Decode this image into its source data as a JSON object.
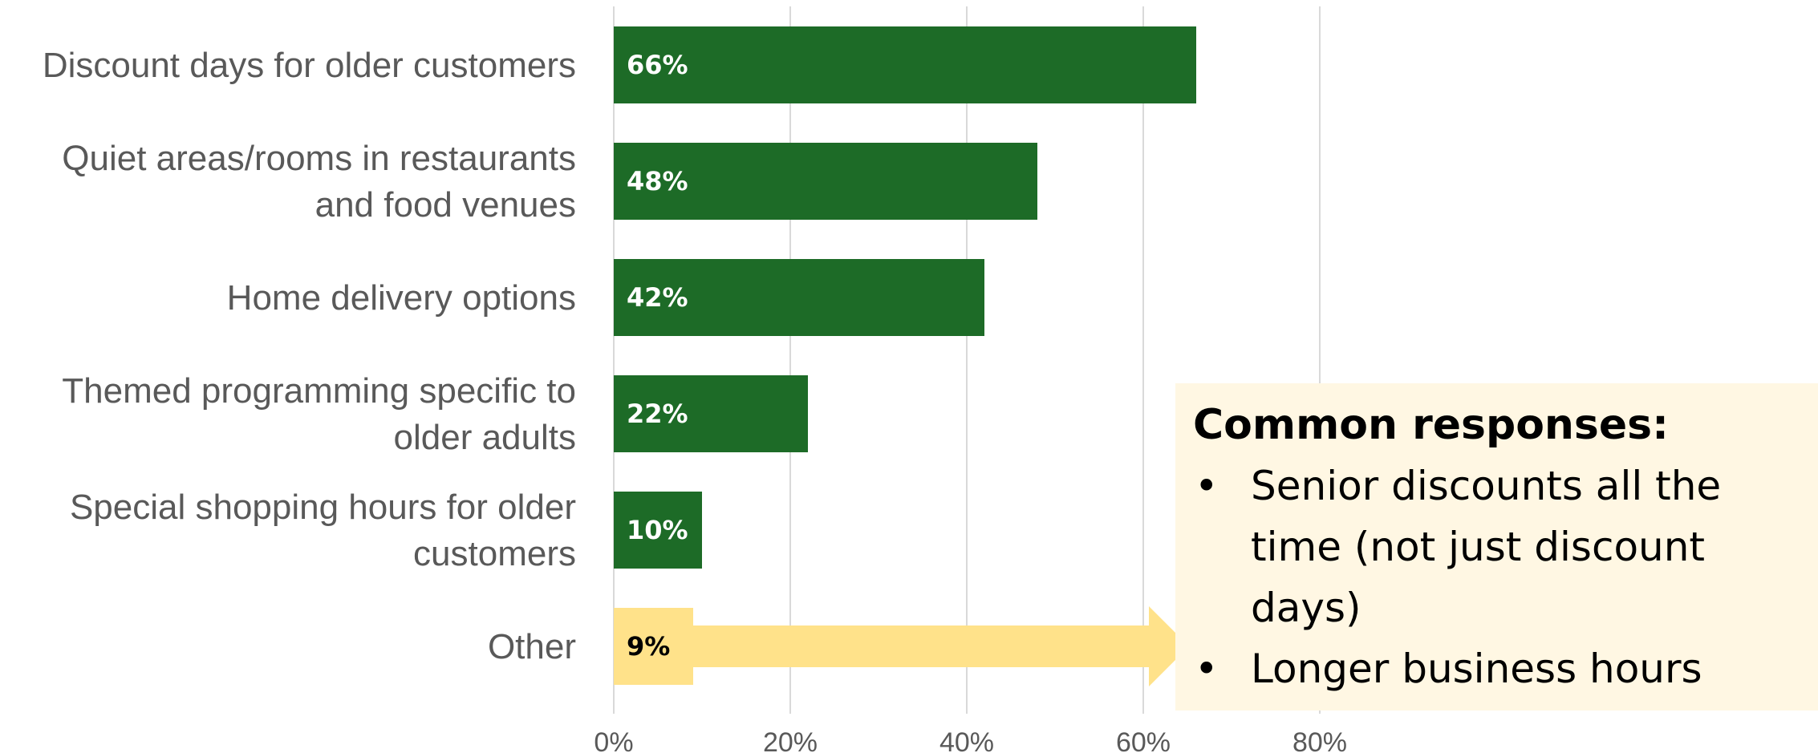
{
  "chart_data": {
    "type": "bar",
    "orientation": "horizontal",
    "categories": [
      [
        "Discount days for older customers"
      ],
      [
        "Quiet areas/rooms in restaurants",
        "and food venues"
      ],
      [
        "Home delivery options"
      ],
      [
        "Themed programming specific to",
        "older adults"
      ],
      [
        "Special shopping hours for older",
        "customers"
      ],
      [
        "Other"
      ]
    ],
    "values": [
      66,
      48,
      42,
      22,
      10,
      9
    ],
    "data_labels": [
      "66%",
      "48%",
      "42%",
      "22%",
      "10%",
      "9%"
    ],
    "highlight_index": 5,
    "xlim": [
      0,
      80
    ],
    "x_ticks": [
      0,
      20,
      40,
      60,
      80
    ],
    "x_tick_labels": [
      "0%",
      "20%",
      "40%",
      "60%",
      "80%"
    ],
    "grid": "vertical",
    "colors": {
      "bar": "#1d6b27",
      "highlight_bar": "#ffe28a",
      "arrow": "#ffe28a",
      "gridline": "#d9d9d9",
      "label_on_bar": "#ffffff",
      "label_on_highlight": "#000000"
    }
  },
  "callout": {
    "title": "Common responses:",
    "bullet": "•",
    "items": [
      [
        "Senior discounts all the",
        "time (not just discount",
        "days)"
      ],
      [
        "Longer business hours"
      ]
    ],
    "background": "#fff7e3"
  }
}
